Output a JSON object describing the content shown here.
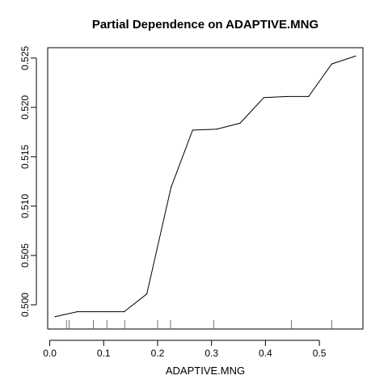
{
  "chart_data": {
    "type": "line",
    "title": "Partial Dependence on ADAPTIVE.MNG",
    "xlabel": "ADAPTIVE.MNG",
    "ylabel": "",
    "xlim": [
      -0.0038,
      0.5808
    ],
    "ylim": [
      0.49755,
      0.52605
    ],
    "x_ticks": [
      0.0,
      0.1,
      0.2,
      0.3,
      0.4,
      0.5
    ],
    "x_tick_labels": [
      "0.0",
      "0.1",
      "0.2",
      "0.3",
      "0.4",
      "0.5"
    ],
    "y_ticks": [
      0.5,
      0.505,
      0.51,
      0.515,
      0.52,
      0.525
    ],
    "y_tick_labels": [
      "0.500",
      "0.505",
      "0.510",
      "0.515",
      "0.520",
      "0.525"
    ],
    "series": [
      {
        "x": [
          0.01,
          0.051,
          0.076,
          0.106,
          0.138,
          0.18,
          0.225,
          0.265,
          0.31,
          0.353,
          0.397,
          0.44,
          0.48,
          0.523,
          0.567
        ],
        "y": [
          0.4988,
          0.4993,
          0.4993,
          0.4993,
          0.4993,
          0.5011,
          0.5119,
          0.5177,
          0.5178,
          0.5184,
          0.521,
          0.5211,
          0.5211,
          0.5244,
          0.5252
        ]
      }
    ],
    "rug": [
      0.031,
      0.036,
      0.081,
      0.106,
      0.139,
      0.2,
      0.224,
      0.304,
      0.448,
      0.523
    ],
    "grid": false,
    "legend": "none"
  }
}
